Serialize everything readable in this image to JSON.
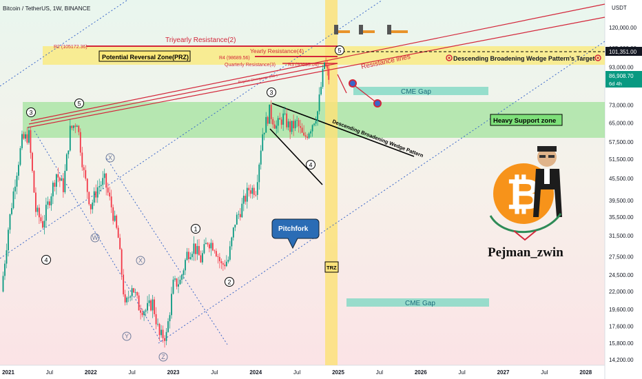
{
  "header": {
    "symbol_title": "Bitcoin / TetherUS, 1W, BINANCE"
  },
  "price_axis": {
    "currency": "USDT",
    "ticks": [
      "120,000.00",
      "105,000.00",
      "93,000.00",
      "73,000.00",
      "65,000.00",
      "57,500.00",
      "51,500.00",
      "45,500.00",
      "39,500.00",
      "35,500.00",
      "31,500.00",
      "27,500.00",
      "24,500.00",
      "22,000.00",
      "19,600.00",
      "17,600.00",
      "15,800.00",
      "14,200.00"
    ],
    "target_label": "101,351.00",
    "current_price": "86,908.70",
    "countdown": "6d 4h"
  },
  "time_axis": {
    "ticks": [
      "2021",
      "Jul",
      "2022",
      "Jul",
      "2023",
      "Jul",
      "2024",
      "Jul",
      "2025",
      "Jul",
      "2026",
      "Jul",
      "2027",
      "Jul",
      "2028"
    ]
  },
  "annotations": {
    "triyearly": "Triyearly Resistance(2)",
    "r2": "R2 (105172.36)",
    "yearly": "Yearly Resistance(4)",
    "r4": "R4 (98689.56)",
    "quarterly": "Quarterly Resistance(3)",
    "r3": "R3 (93685.04)",
    "prz": "Potential Reversal Zone(PRZ)",
    "resistance_lines": "Resistance lines",
    "target": "Descending Broadening Wedge Pattern's Target",
    "regular_divergence": "Regular Divergence (RD-)",
    "cme_gap": "CME Gap",
    "heavy_support": "Heavy Support zone",
    "wedge": "Descending Broadening Wedge Pattern",
    "pitchfork": "Pitchfork",
    "trz": "TRZ",
    "author": "Pejman_zwin"
  },
  "wave_labels": {
    "w3a": "3",
    "w5a": "5",
    "w4a": "4",
    "x1": "X",
    "w": "W",
    "x2": "X",
    "y": "Y",
    "z": "Z",
    "w1": "1",
    "w2": "2",
    "w3b": "3",
    "w4b": "4",
    "w5b": "5"
  },
  "colors": {
    "bull": "#089981",
    "bear": "#f23645",
    "prz_zone": "#fbe97a",
    "support_zone": "#8fe08a",
    "cme_gap": "#7fd8c4",
    "trz": "#fbe27a",
    "pitchfork_box": "#2a6cb5",
    "resistance": "#d3263a",
    "bitcoin": "#f7931a"
  },
  "chart_data": {
    "type": "candlestick",
    "title": "Bitcoin / TetherUS, 1W, BINANCE",
    "y_scale": "log",
    "ylim": [
      14200,
      140000
    ],
    "xlim": [
      "2020-12",
      "2028-06"
    ],
    "current_price": 86908.7,
    "target": 101351.0,
    "close_path": [
      {
        "t": "2020-12",
        "v": 22000
      },
      {
        "t": "2021-01",
        "v": 33000
      },
      {
        "t": "2021-02",
        "v": 45000
      },
      {
        "t": "2021-03",
        "v": 58000
      },
      {
        "t": "2021-04",
        "v": 60000
      },
      {
        "t": "2021-05",
        "v": 37000
      },
      {
        "t": "2021-06",
        "v": 34000
      },
      {
        "t": "2021-07",
        "v": 40000
      },
      {
        "t": "2021-08",
        "v": 47000
      },
      {
        "t": "2021-09",
        "v": 43000
      },
      {
        "t": "2021-10",
        "v": 62000
      },
      {
        "t": "2021-11",
        "v": 66000
      },
      {
        "t": "2021-12",
        "v": 47000
      },
      {
        "t": "2022-01",
        "v": 38000
      },
      {
        "t": "2022-02",
        "v": 43000
      },
      {
        "t": "2022-03",
        "v": 45000
      },
      {
        "t": "2022-04",
        "v": 38000
      },
      {
        "t": "2022-05",
        "v": 31000
      },
      {
        "t": "2022-06",
        "v": 19800
      },
      {
        "t": "2022-07",
        "v": 23000
      },
      {
        "t": "2022-08",
        "v": 20000
      },
      {
        "t": "2022-09",
        "v": 19500
      },
      {
        "t": "2022-10",
        "v": 20500
      },
      {
        "t": "2022-11",
        "v": 16500
      },
      {
        "t": "2022-12",
        "v": 16600
      },
      {
        "t": "2023-01",
        "v": 23000
      },
      {
        "t": "2023-02",
        "v": 23500
      },
      {
        "t": "2023-03",
        "v": 28000
      },
      {
        "t": "2023-04",
        "v": 29500
      },
      {
        "t": "2023-05",
        "v": 27000
      },
      {
        "t": "2023-06",
        "v": 30500
      },
      {
        "t": "2023-07",
        "v": 29500
      },
      {
        "t": "2023-08",
        "v": 26000
      },
      {
        "t": "2023-09",
        "v": 27000
      },
      {
        "t": "2023-10",
        "v": 34500
      },
      {
        "t": "2023-11",
        "v": 38000
      },
      {
        "t": "2023-12",
        "v": 42500
      },
      {
        "t": "2024-01",
        "v": 42500
      },
      {
        "t": "2024-02",
        "v": 61000
      },
      {
        "t": "2024-03",
        "v": 70000
      },
      {
        "t": "2024-04",
        "v": 63500
      },
      {
        "t": "2024-05",
        "v": 67500
      },
      {
        "t": "2024-06",
        "v": 62800
      },
      {
        "t": "2024-07",
        "v": 65000
      },
      {
        "t": "2024-08",
        "v": 58500
      },
      {
        "t": "2024-09",
        "v": 63500
      },
      {
        "t": "2024-10",
        "v": 70000
      },
      {
        "t": "2024-11",
        "v": 96000
      },
      {
        "t": "2024-11-20",
        "v": 86908.7
      }
    ],
    "zones": [
      {
        "name": "Potential Reversal Zone(PRZ)",
        "low": 93000,
        "high": 105000
      },
      {
        "name": "Heavy Support zone",
        "low": 58500,
        "high": 73000
      },
      {
        "name": "CME Gap",
        "low": 77500,
        "high": 81500
      },
      {
        "name": "CME Gap",
        "low": 20500,
        "high": 21200
      }
    ],
    "levels": [
      {
        "name": "R2",
        "value": 105172.36
      },
      {
        "name": "R4",
        "value": 98689.56
      },
      {
        "name": "R3",
        "value": 93685.04
      }
    ]
  }
}
